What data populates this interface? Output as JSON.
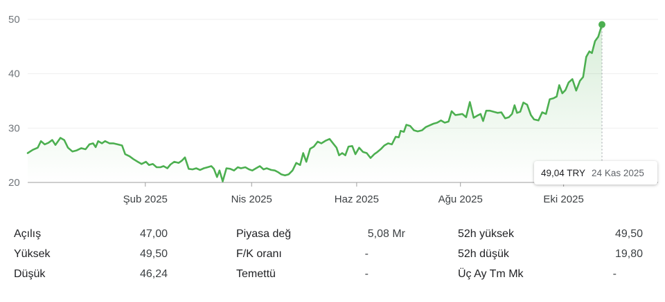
{
  "chart_data": {
    "type": "area",
    "ylim": [
      20,
      50
    ],
    "yticks": [
      20,
      30,
      40,
      50
    ],
    "xtick_labels": [
      "Şub 2025",
      "Nis 2025",
      "Haz 2025",
      "Ağu 2025",
      "Eki 2025"
    ],
    "xtick_positions": [
      0.187,
      0.356,
      0.523,
      0.688,
      0.852
    ],
    "series": [
      {
        "color": "#4caf50",
        "points": [
          [
            0.0,
            25.4
          ],
          [
            0.008,
            26.0
          ],
          [
            0.016,
            26.4
          ],
          [
            0.021,
            27.6
          ],
          [
            0.027,
            27.0
          ],
          [
            0.033,
            27.3
          ],
          [
            0.039,
            27.8
          ],
          [
            0.044,
            26.9
          ],
          [
            0.052,
            28.2
          ],
          [
            0.058,
            27.8
          ],
          [
            0.064,
            26.4
          ],
          [
            0.071,
            25.7
          ],
          [
            0.078,
            25.9
          ],
          [
            0.085,
            26.3
          ],
          [
            0.092,
            26.1
          ],
          [
            0.098,
            27.0
          ],
          [
            0.104,
            27.2
          ],
          [
            0.108,
            26.5
          ],
          [
            0.112,
            27.6
          ],
          [
            0.118,
            27.2
          ],
          [
            0.123,
            27.6
          ],
          [
            0.13,
            27.2
          ],
          [
            0.136,
            27.2
          ],
          [
            0.143,
            27.0
          ],
          [
            0.15,
            26.8
          ],
          [
            0.155,
            25.2
          ],
          [
            0.162,
            24.8
          ],
          [
            0.168,
            24.3
          ],
          [
            0.175,
            23.8
          ],
          [
            0.181,
            23.4
          ],
          [
            0.188,
            23.8
          ],
          [
            0.193,
            23.2
          ],
          [
            0.199,
            23.4
          ],
          [
            0.205,
            22.8
          ],
          [
            0.211,
            22.8
          ],
          [
            0.216,
            23.0
          ],
          [
            0.222,
            22.6
          ],
          [
            0.227,
            23.3
          ],
          [
            0.233,
            23.8
          ],
          [
            0.24,
            23.6
          ],
          [
            0.245,
            24.0
          ],
          [
            0.25,
            24.6
          ],
          [
            0.256,
            22.5
          ],
          [
            0.262,
            22.4
          ],
          [
            0.268,
            22.6
          ],
          [
            0.274,
            22.3
          ],
          [
            0.28,
            22.6
          ],
          [
            0.286,
            22.8
          ],
          [
            0.292,
            23.0
          ],
          [
            0.296,
            22.5
          ],
          [
            0.301,
            21.0
          ],
          [
            0.305,
            22.2
          ],
          [
            0.31,
            20.2
          ],
          [
            0.316,
            22.6
          ],
          [
            0.322,
            22.5
          ],
          [
            0.328,
            22.2
          ],
          [
            0.334,
            22.8
          ],
          [
            0.339,
            22.6
          ],
          [
            0.346,
            22.8
          ],
          [
            0.352,
            22.4
          ],
          [
            0.357,
            22.2
          ],
          [
            0.363,
            22.6
          ],
          [
            0.369,
            23.0
          ],
          [
            0.375,
            22.4
          ],
          [
            0.38,
            22.6
          ],
          [
            0.387,
            22.3
          ],
          [
            0.393,
            22.2
          ],
          [
            0.398,
            21.9
          ],
          [
            0.403,
            21.5
          ],
          [
            0.409,
            21.3
          ],
          [
            0.415,
            21.5
          ],
          [
            0.421,
            22.2
          ],
          [
            0.427,
            23.6
          ],
          [
            0.433,
            23.2
          ],
          [
            0.438,
            25.4
          ],
          [
            0.443,
            23.8
          ],
          [
            0.449,
            26.2
          ],
          [
            0.455,
            26.6
          ],
          [
            0.461,
            27.5
          ],
          [
            0.467,
            27.2
          ],
          [
            0.474,
            27.7
          ],
          [
            0.48,
            28.0
          ],
          [
            0.486,
            27.1
          ],
          [
            0.491,
            26.4
          ],
          [
            0.495,
            25.0
          ],
          [
            0.5,
            25.4
          ],
          [
            0.505,
            25.0
          ],
          [
            0.51,
            26.6
          ],
          [
            0.516,
            26.7
          ],
          [
            0.521,
            25.2
          ],
          [
            0.527,
            26.4
          ],
          [
            0.533,
            25.6
          ],
          [
            0.539,
            25.4
          ],
          [
            0.545,
            24.5
          ],
          [
            0.551,
            25.2
          ],
          [
            0.556,
            25.6
          ],
          [
            0.562,
            26.2
          ],
          [
            0.567,
            26.8
          ],
          [
            0.573,
            27.2
          ],
          [
            0.579,
            27.0
          ],
          [
            0.585,
            28.4
          ],
          [
            0.59,
            28.3
          ],
          [
            0.593,
            29.5
          ],
          [
            0.598,
            29.3
          ],
          [
            0.602,
            30.6
          ],
          [
            0.608,
            30.4
          ],
          [
            0.614,
            29.6
          ],
          [
            0.62,
            29.4
          ],
          [
            0.627,
            29.6
          ],
          [
            0.633,
            30.2
          ],
          [
            0.639,
            30.5
          ],
          [
            0.645,
            30.8
          ],
          [
            0.651,
            31.0
          ],
          [
            0.657,
            31.4
          ],
          [
            0.663,
            31.0
          ],
          [
            0.669,
            31.2
          ],
          [
            0.674,
            33.1
          ],
          [
            0.68,
            32.4
          ],
          [
            0.686,
            32.5
          ],
          [
            0.691,
            32.6
          ],
          [
            0.697,
            32.0
          ],
          [
            0.703,
            34.8
          ],
          [
            0.709,
            31.9
          ],
          [
            0.715,
            32.3
          ],
          [
            0.72,
            32.6
          ],
          [
            0.724,
            31.3
          ],
          [
            0.729,
            33.2
          ],
          [
            0.735,
            33.2
          ],
          [
            0.741,
            33.0
          ],
          [
            0.747,
            32.8
          ],
          [
            0.753,
            32.9
          ],
          [
            0.759,
            31.8
          ],
          [
            0.765,
            32.0
          ],
          [
            0.77,
            32.6
          ],
          [
            0.774,
            34.2
          ],
          [
            0.778,
            32.8
          ],
          [
            0.783,
            33.0
          ],
          [
            0.788,
            34.7
          ],
          [
            0.794,
            34.3
          ],
          [
            0.8,
            32.4
          ],
          [
            0.805,
            31.6
          ],
          [
            0.812,
            31.4
          ],
          [
            0.818,
            32.9
          ],
          [
            0.824,
            32.6
          ],
          [
            0.83,
            35.3
          ],
          [
            0.836,
            35.5
          ],
          [
            0.841,
            35.8
          ],
          [
            0.845,
            37.9
          ],
          [
            0.85,
            36.4
          ],
          [
            0.855,
            37.0
          ],
          [
            0.86,
            38.4
          ],
          [
            0.866,
            39.0
          ],
          [
            0.872,
            36.9
          ],
          [
            0.878,
            38.7
          ],
          [
            0.883,
            39.4
          ],
          [
            0.888,
            43.1
          ],
          [
            0.893,
            44.1
          ],
          [
            0.897,
            43.8
          ],
          [
            0.902,
            46.0
          ],
          [
            0.907,
            46.8
          ],
          [
            0.913,
            49.04
          ]
        ]
      }
    ],
    "tooltip": {
      "value": "49,04 TRY",
      "date": "24 Kas 2025"
    }
  },
  "stats": [
    {
      "label": "Açılış",
      "value": "47,00"
    },
    {
      "label": "Yüksek",
      "value": "49,50"
    },
    {
      "label": "Düşük",
      "value": "46,24"
    },
    {
      "label": "Piyasa değ",
      "value": "5,08 Mr"
    },
    {
      "label": "F/K oranı",
      "value": "-"
    },
    {
      "label": "Temettü",
      "value": "-"
    },
    {
      "label": "52h yüksek",
      "value": "49,50"
    },
    {
      "label": "52h düşük",
      "value": "19,80"
    },
    {
      "label": "Üç Ay Tm Mk",
      "value": "-"
    }
  ]
}
